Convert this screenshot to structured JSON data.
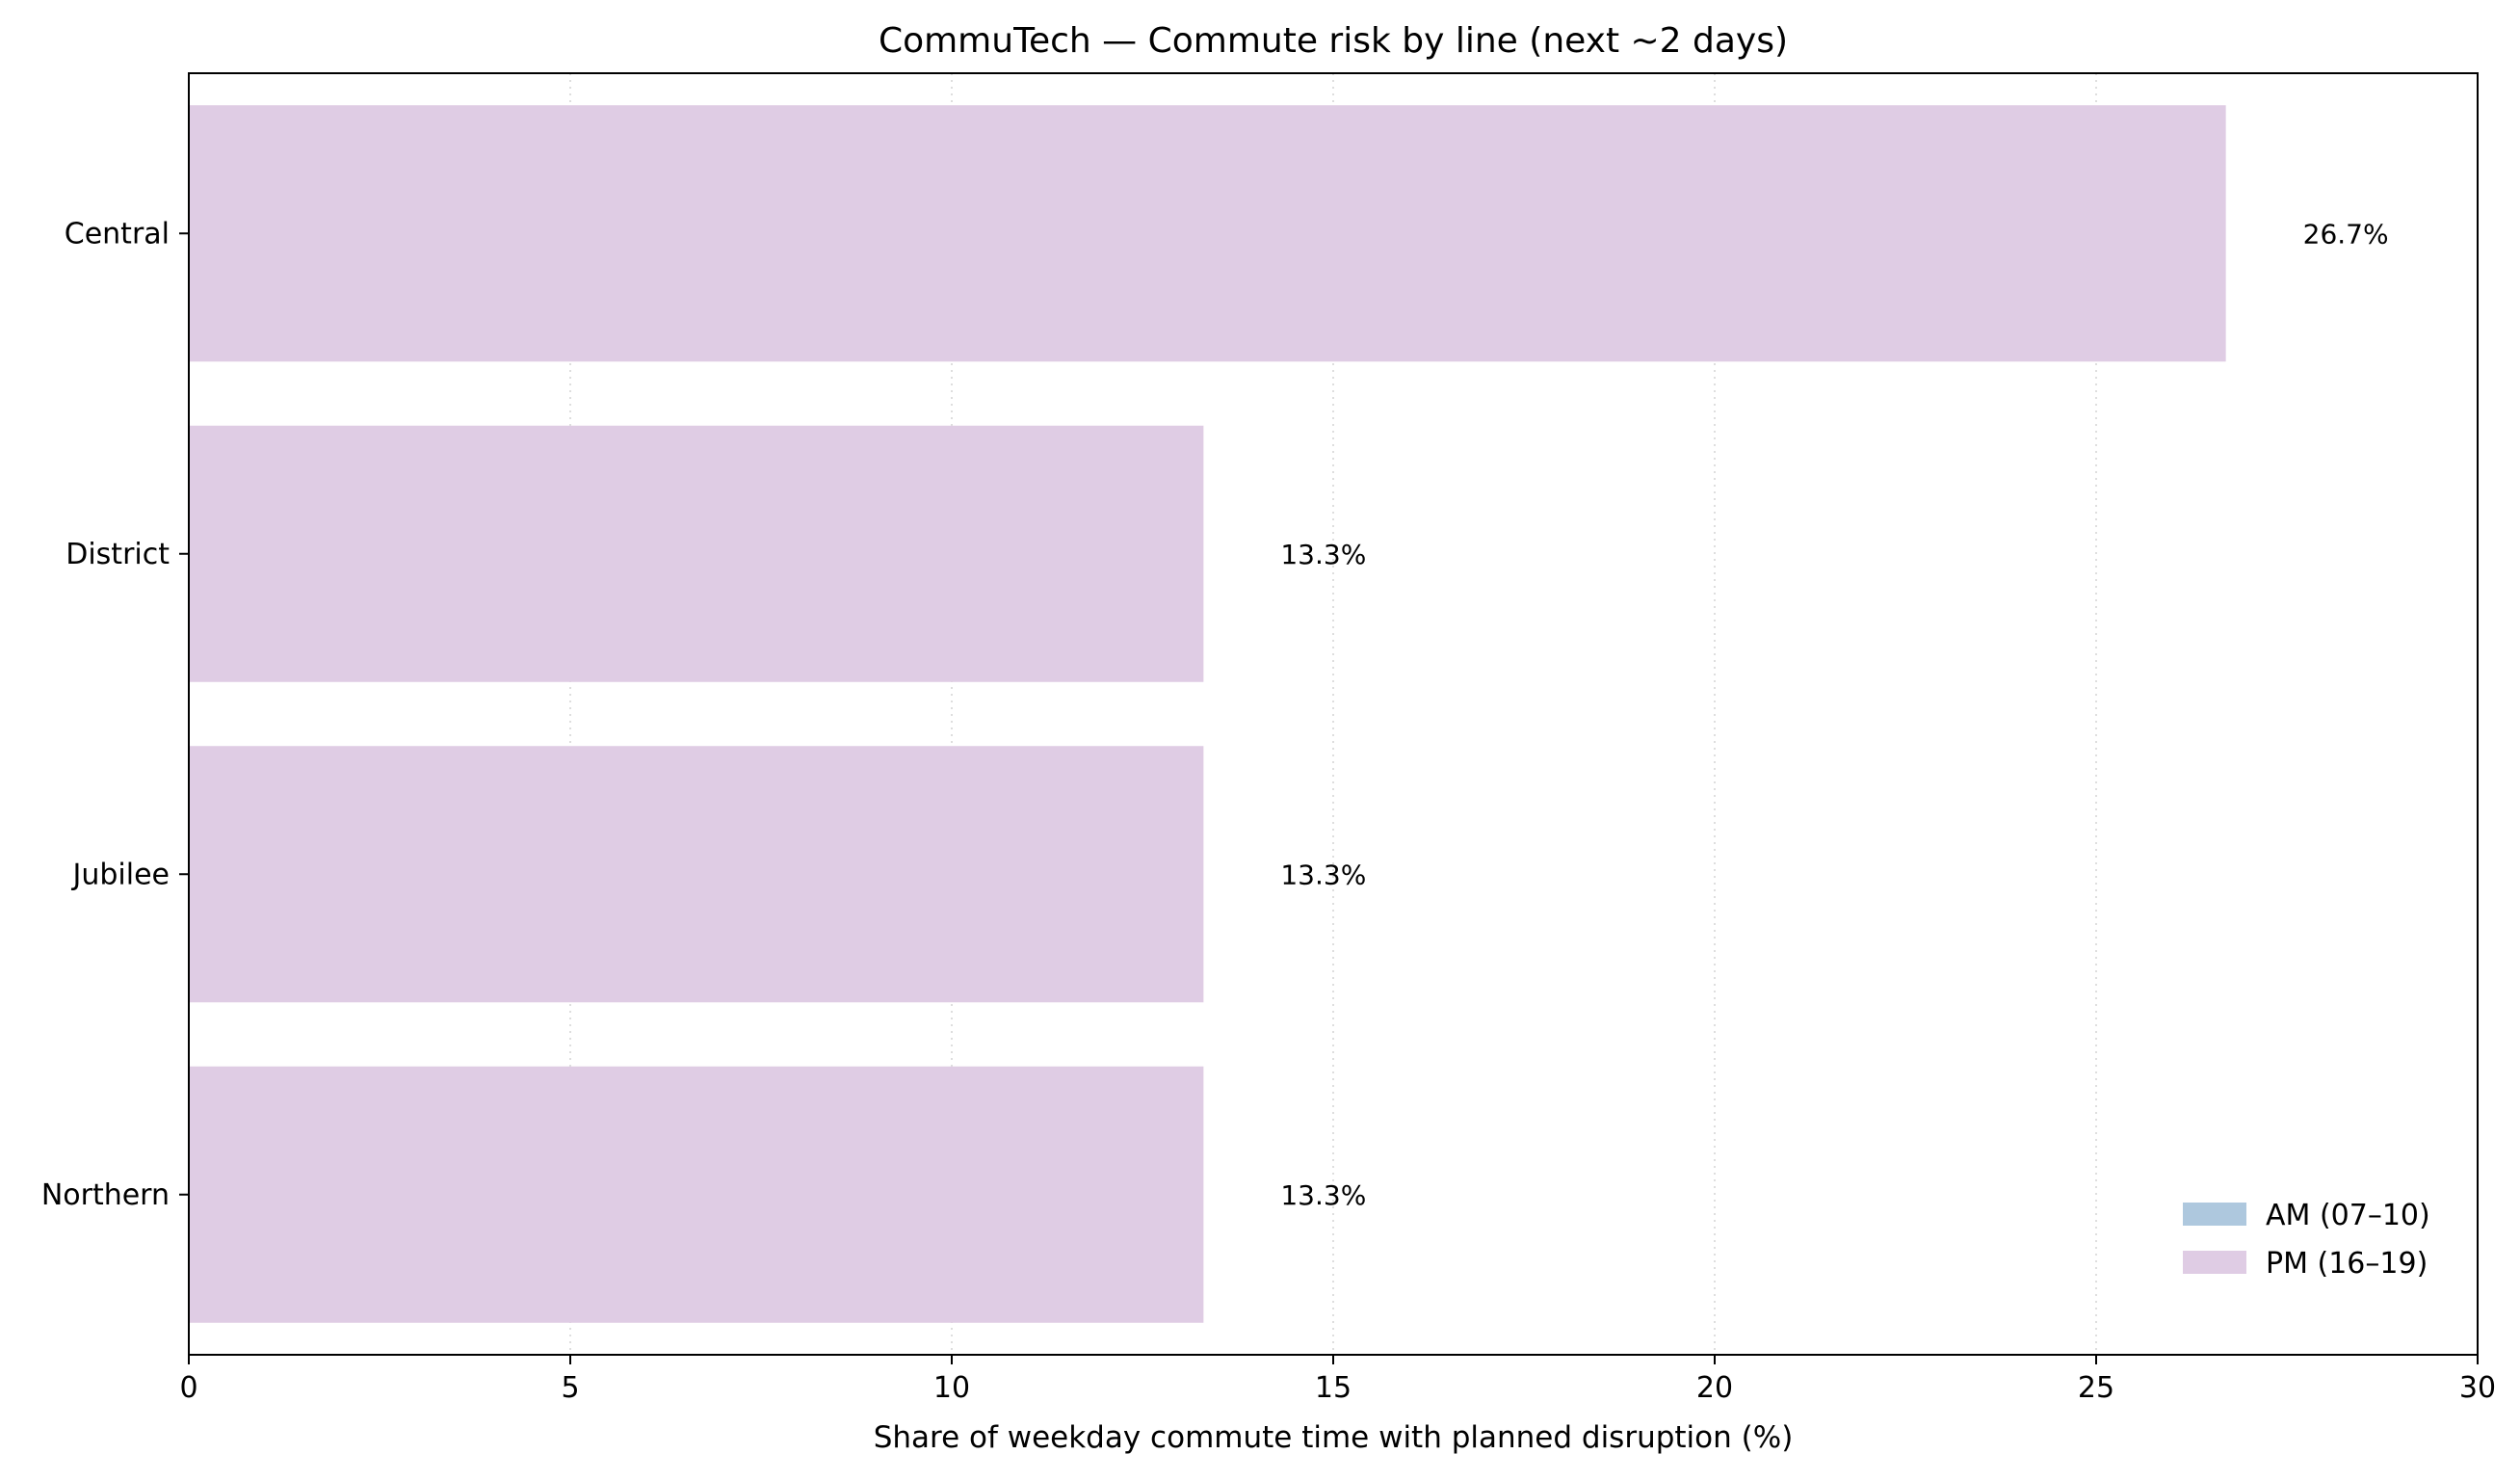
{
  "chart_data": {
    "type": "bar",
    "orientation": "horizontal",
    "stacked": true,
    "title": "CommuTech — Commute risk by line (next ~2 days)",
    "xlabel": "Share of weekday commute time with planned disruption (%)",
    "ylabel": "",
    "categories": [
      "Central",
      "District",
      "Jubilee",
      "Northern"
    ],
    "series": [
      {
        "name": "AM (07–10)",
        "color": "#aec8de",
        "values": [
          0,
          0,
          0,
          0
        ]
      },
      {
        "name": "PM (16–19)",
        "color": "#dfcce4",
        "values": [
          26.7,
          13.3,
          13.3,
          13.3
        ]
      }
    ],
    "bar_labels": [
      "26.7%",
      "13.3%",
      "13.3%",
      "13.3%"
    ],
    "xlim": [
      0,
      30
    ],
    "xticks": [
      0,
      5,
      10,
      15,
      20,
      25,
      30
    ],
    "grid": "x, dotted",
    "legend_position": "lower-right"
  }
}
